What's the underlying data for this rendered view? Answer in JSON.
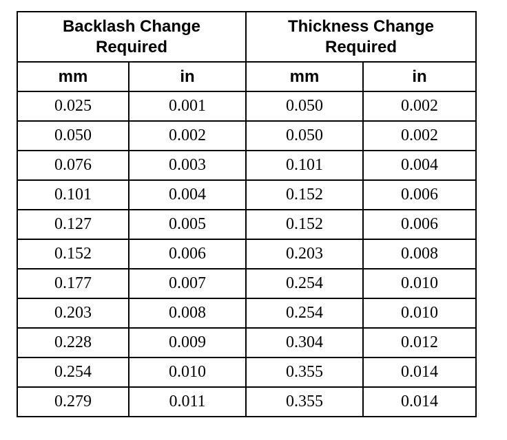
{
  "table": {
    "group_headers": [
      "Backlash Change Required",
      "Thickness Change Required"
    ],
    "unit_headers": [
      "mm",
      "in",
      "mm",
      "in"
    ],
    "rows": [
      [
        "0.025",
        "0.001",
        "0.050",
        "0.002"
      ],
      [
        "0.050",
        "0.002",
        "0.050",
        "0.002"
      ],
      [
        "0.076",
        "0.003",
        "0.101",
        "0.004"
      ],
      [
        "0.101",
        "0.004",
        "0.152",
        "0.006"
      ],
      [
        "0.127",
        "0.005",
        "0.152",
        "0.006"
      ],
      [
        "0.152",
        "0.006",
        "0.203",
        "0.008"
      ],
      [
        "0.177",
        "0.007",
        "0.254",
        "0.010"
      ],
      [
        "0.203",
        "0.008",
        "0.254",
        "0.010"
      ],
      [
        "0.228",
        "0.009",
        "0.304",
        "0.012"
      ],
      [
        "0.254",
        "0.010",
        "0.355",
        "0.014"
      ],
      [
        "0.279",
        "0.011",
        "0.355",
        "0.014"
      ]
    ]
  }
}
